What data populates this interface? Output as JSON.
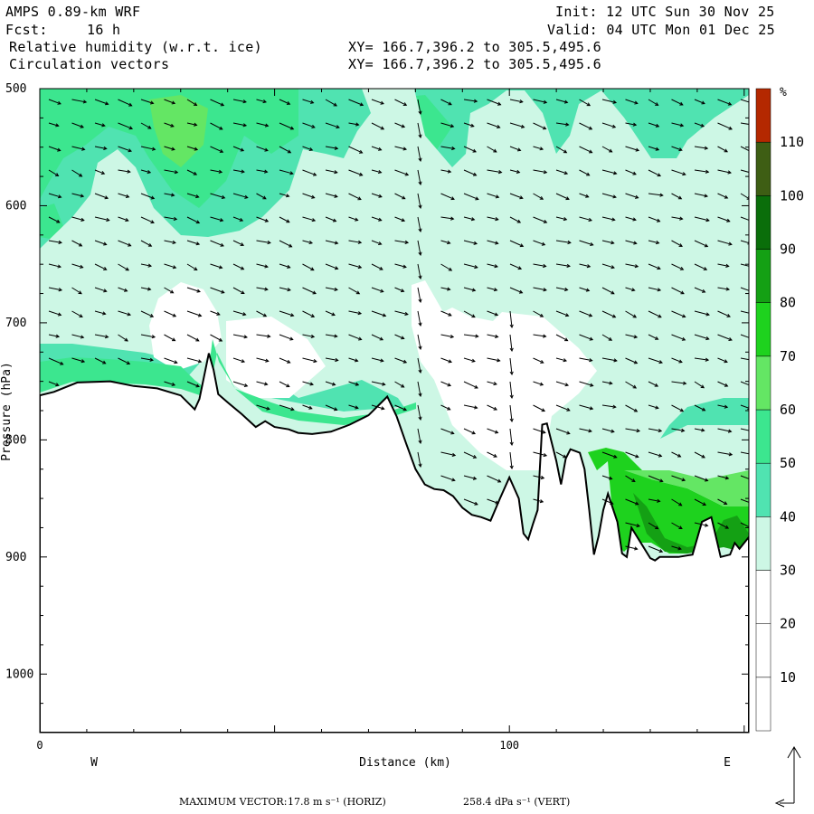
{
  "header": {
    "model": "AMPS 0.89-km WRF",
    "init": "Init: 12 UTC Sun 30 Nov 25",
    "fcst_label": "Fcst:",
    "fcst_value": "16 h",
    "valid": "Valid: 04 UTC Mon 01 Dec 25",
    "field1": "Relative humidity (w.r.t. ice)",
    "field2": "Circulation vectors",
    "xy1": "XY= 166.7,396.2 to 305.5,495.6",
    "xy2": "XY= 166.7,396.2 to 305.5,495.6"
  },
  "chart_data": {
    "type": "heatmap",
    "title": "Relative humidity (w.r.t. ice)",
    "xlabel": "Distance (km)",
    "ylabel": "Pressure (hPa)",
    "x_ticks": [
      0,
      100
    ],
    "y_ticks": [
      500,
      600,
      700,
      800,
      900,
      1000
    ],
    "xlim": [
      0,
      151
    ],
    "ylim": [
      500,
      1050
    ],
    "y_inverted": true,
    "west_label": "W",
    "east_label": "E",
    "colorbar": {
      "unit": "%",
      "levels": [
        10,
        20,
        30,
        40,
        50,
        60,
        70,
        80,
        90,
        100,
        110
      ],
      "colors": [
        "#ffffff",
        "#ffffff",
        "#ffffff",
        "#cdf7e5",
        "#50e3b1",
        "#3ce68f",
        "#64e664",
        "#1ed21e",
        "#14a014",
        "#0a6e0a",
        "#3e5e14",
        "#b42800"
      ]
    },
    "terrain_profile": {
      "x_km": [
        0,
        3,
        8,
        15,
        20,
        25,
        30,
        33,
        34,
        36,
        37,
        38,
        40,
        43,
        46,
        48,
        50,
        53,
        55,
        58,
        62,
        66,
        70,
        74,
        76,
        78,
        80,
        82,
        84,
        86,
        88,
        90,
        92,
        94,
        96,
        98,
        100,
        102,
        103,
        104,
        105,
        106,
        107,
        108,
        110,
        111,
        112,
        113,
        115,
        116,
        117,
        118,
        119,
        120,
        121,
        123,
        124,
        125,
        126,
        128,
        130,
        131,
        132,
        134,
        136,
        139,
        141,
        143,
        145,
        147,
        148,
        149,
        150,
        151
      ],
      "pressure_hPa": [
        762,
        759,
        751,
        750,
        754,
        756,
        762,
        774,
        765,
        726,
        740,
        761,
        768,
        778,
        789,
        784,
        789,
        791,
        794,
        795,
        793,
        787,
        779,
        763,
        780,
        803,
        825,
        838,
        842,
        843,
        848,
        858,
        864,
        866,
        869,
        850,
        832,
        850,
        880,
        885,
        872,
        860,
        787,
        786,
        818,
        838,
        816,
        808,
        811,
        825,
        860,
        898,
        882,
        860,
        846,
        870,
        897,
        900,
        875,
        888,
        901,
        903,
        900,
        900,
        900,
        898,
        870,
        866,
        900,
        898,
        888,
        893,
        888,
        883
      ]
    },
    "wind_vectors": {
      "max_horiz_m_s": 17.8,
      "max_vert_dPa_s": 258.4,
      "unit_horiz": "m s⁻¹",
      "unit_vert": "dPa s⁻¹"
    }
  },
  "footer": {
    "max_label": "MAXIMUM VECTOR:",
    "horiz": "17.8 m s⁻¹ (HORIZ)",
    "vert": "258.4 dPa s⁻¹ (VERT)"
  },
  "colors": {
    "c30": "#cdf7e5",
    "c40": "#50e3b1",
    "c50": "#3ce68f",
    "c60": "#64e664",
    "c70": "#1ed21e",
    "c90": "#14a014"
  }
}
